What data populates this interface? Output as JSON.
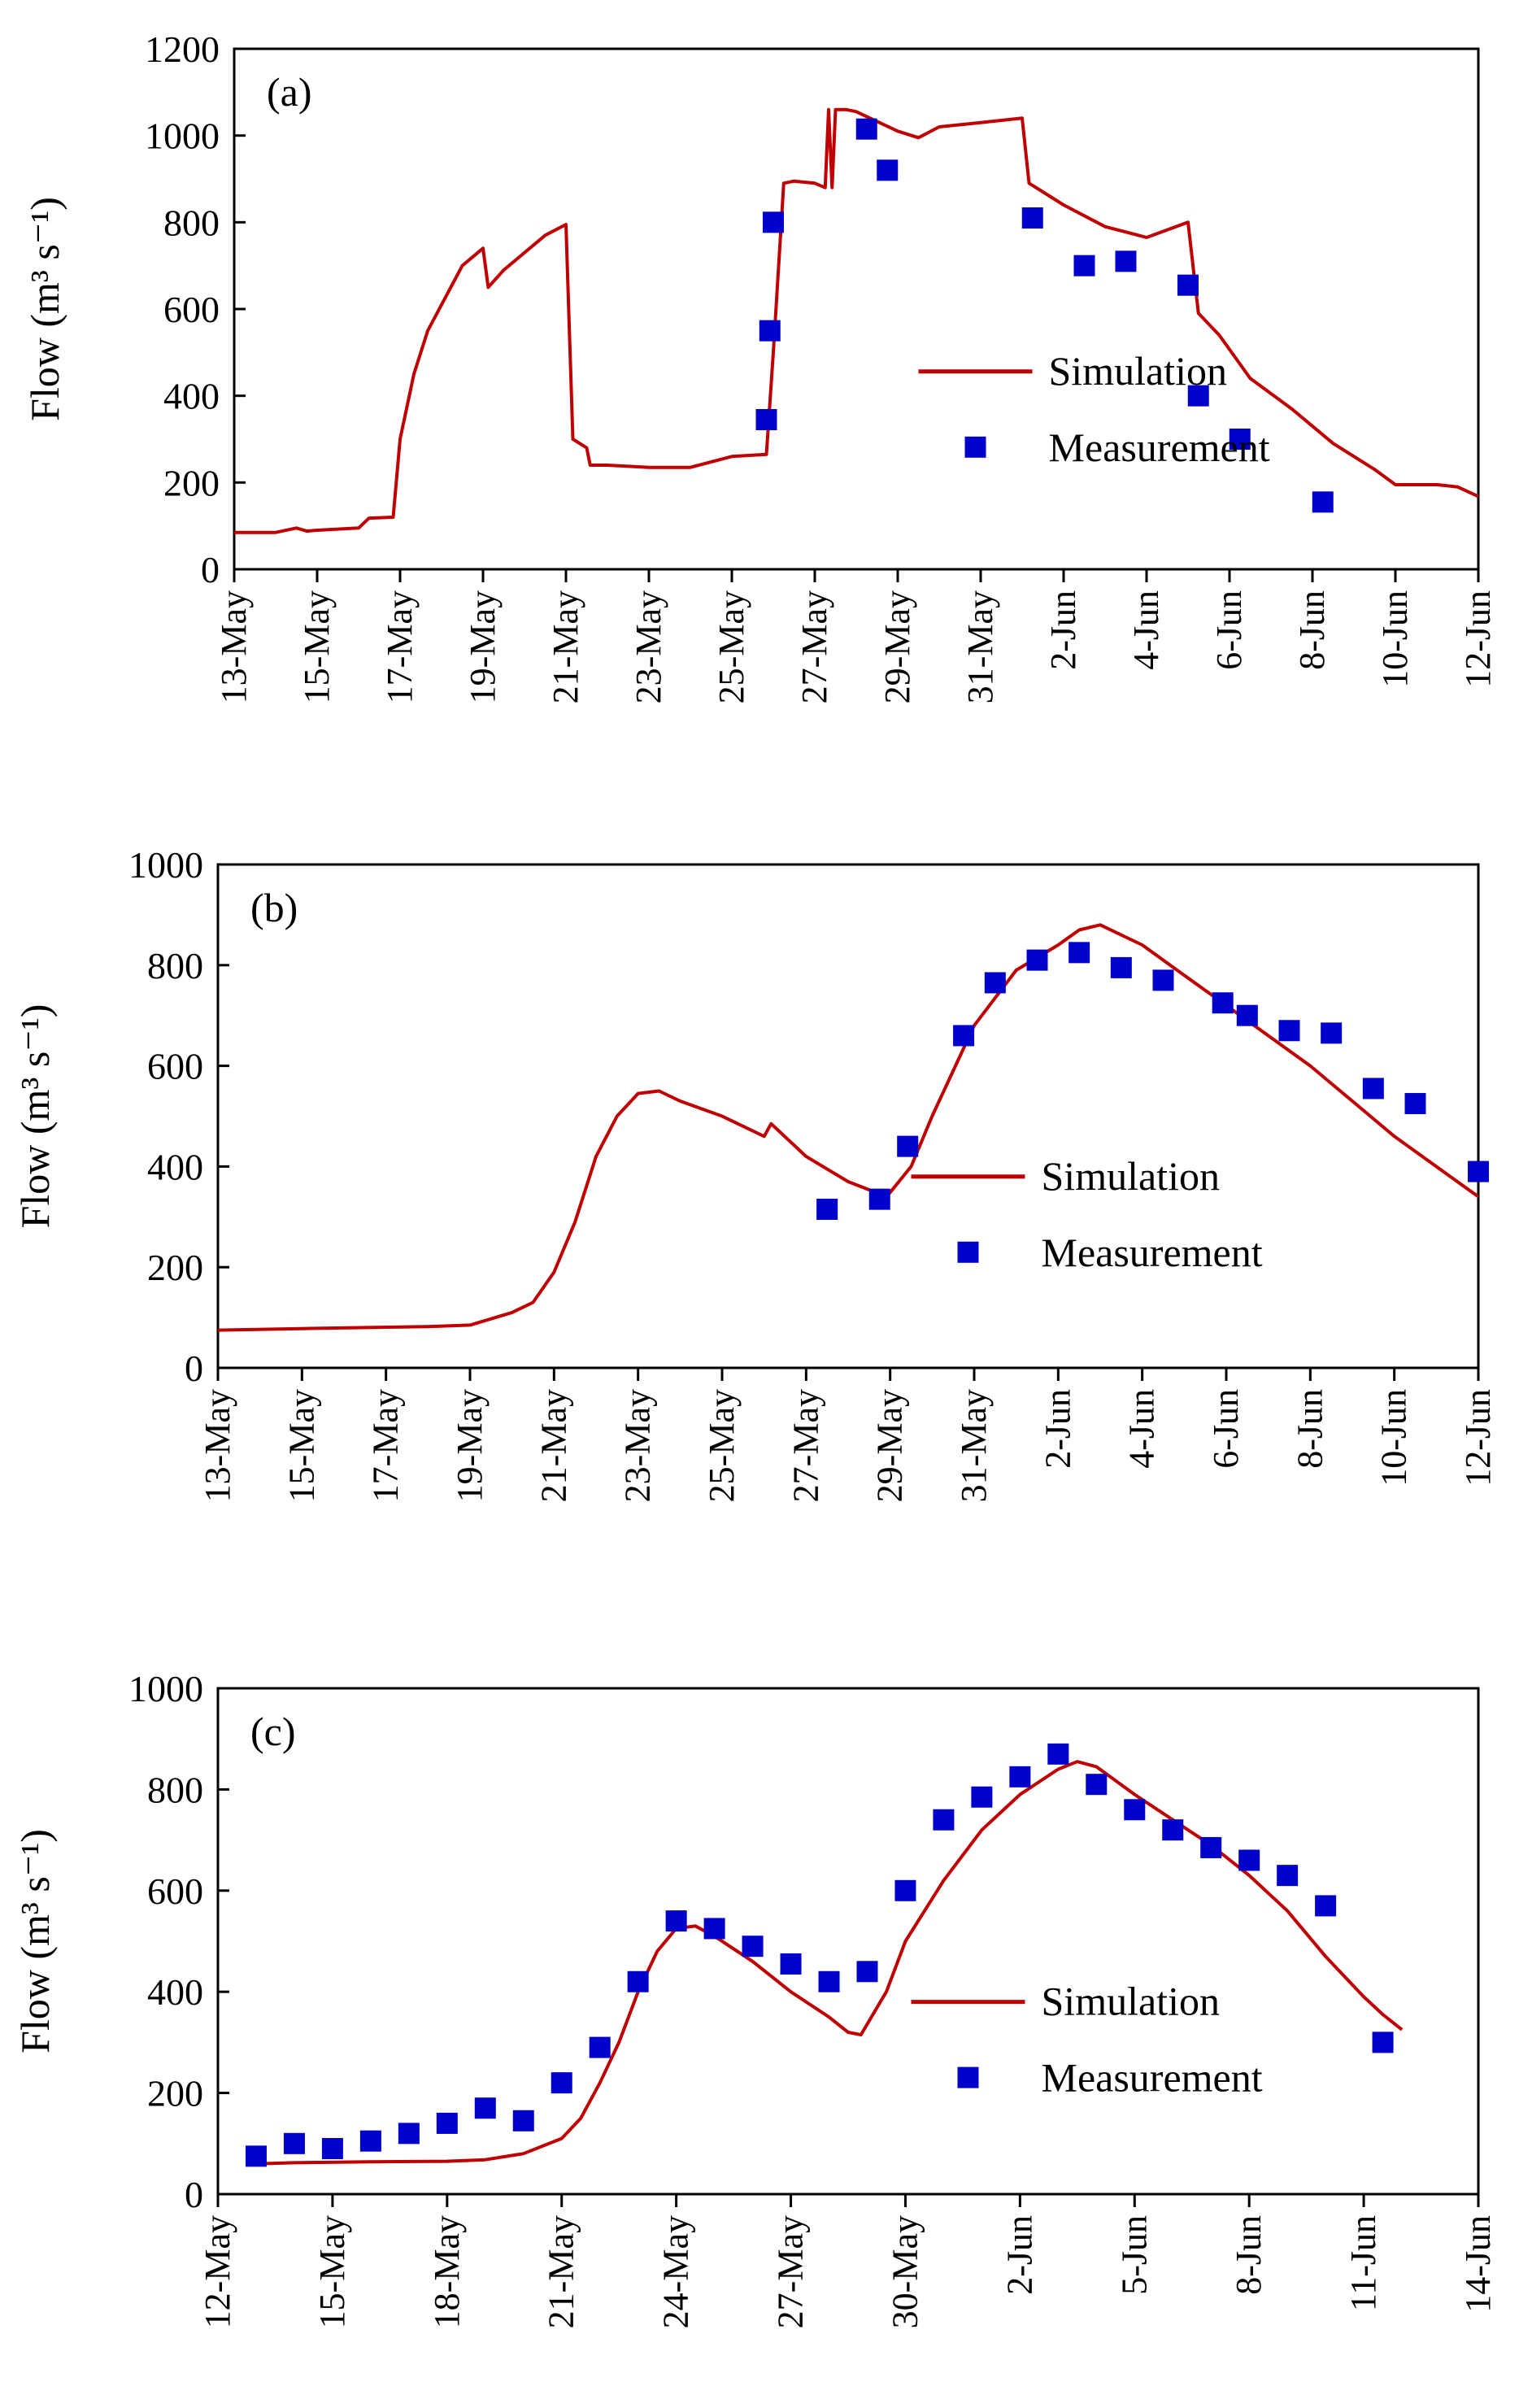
{
  "colors": {
    "simulation": "#c00000",
    "measurement": "#0000cc",
    "axes": "#000000"
  },
  "chart_data": [
    {
      "type": "line",
      "panel_label": "(a)",
      "ylabel": "Flow (m³ s⁻¹)",
      "xlabel": "",
      "x_format": "day-month",
      "ylim": [
        0,
        1200
      ],
      "yticks": [
        0,
        200,
        400,
        600,
        800,
        1000,
        1200
      ],
      "xlim": [
        "2000-05-13",
        "2000-06-12"
      ],
      "xtick_labels": [
        "13-May",
        "15-May",
        "17-May",
        "19-May",
        "21-May",
        "23-May",
        "25-May",
        "27-May",
        "29-May",
        "31-May",
        "2-Jun",
        "4-Jun",
        "6-Jun",
        "8-Jun",
        "10-Jun",
        "12-Jun"
      ],
      "legend": {
        "position": "right-center",
        "entries": [
          "Simulation",
          "Measurement"
        ]
      },
      "series": [
        {
          "name": "Simulation",
          "kind": "line",
          "points": [
            [
              "2000-05-13T00",
              85
            ],
            [
              "2000-05-14T00",
              85
            ],
            [
              "2000-05-14T12",
              95
            ],
            [
              "2000-05-14T18",
              88
            ],
            [
              "2000-05-15T00",
              90
            ],
            [
              "2000-05-16T00",
              95
            ],
            [
              "2000-05-16T06",
              118
            ],
            [
              "2000-05-16T20",
              120
            ],
            [
              "2000-05-17T00",
              300
            ],
            [
              "2000-05-17T08",
              450
            ],
            [
              "2000-05-17T16",
              550
            ],
            [
              "2000-05-18T00",
              610
            ],
            [
              "2000-05-18T12",
              700
            ],
            [
              "2000-05-19T00",
              740
            ],
            [
              "2000-05-19T03",
              650
            ],
            [
              "2000-05-19T12",
              690
            ],
            [
              "2000-05-20T00",
              730
            ],
            [
              "2000-05-20T12",
              770
            ],
            [
              "2000-05-21T00",
              795
            ],
            [
              "2000-05-21T04",
              300
            ],
            [
              "2000-05-21T12",
              280
            ],
            [
              "2000-05-21T14",
              240
            ],
            [
              "2000-05-22T00",
              240
            ],
            [
              "2000-05-23T00",
              235
            ],
            [
              "2000-05-24T00",
              235
            ],
            [
              "2000-05-25T00",
              260
            ],
            [
              "2000-05-25T20",
              265
            ],
            [
              "2000-05-26T00",
              500
            ],
            [
              "2000-05-26T06",
              890
            ],
            [
              "2000-05-26T12",
              895
            ],
            [
              "2000-05-27T00",
              890
            ],
            [
              "2000-05-27T06",
              880
            ],
            [
              "2000-05-27T08",
              1060
            ],
            [
              "2000-05-27T10",
              880
            ],
            [
              "2000-05-27T12",
              1060
            ],
            [
              "2000-05-27T18",
              1060
            ],
            [
              "2000-05-28T00",
              1055
            ],
            [
              "2000-05-29T00",
              1010
            ],
            [
              "2000-05-29T12",
              995
            ],
            [
              "2000-05-30T00",
              1020
            ],
            [
              "2000-05-31T00",
              1030
            ],
            [
              "2000-06-01T00",
              1040
            ],
            [
              "2000-06-01T04",
              890
            ],
            [
              "2000-06-02T00",
              840
            ],
            [
              "2000-06-03T00",
              790
            ],
            [
              "2000-06-04T00",
              765
            ],
            [
              "2000-06-05T00",
              800
            ],
            [
              "2000-06-05T06",
              590
            ],
            [
              "2000-06-05T18",
              540
            ],
            [
              "2000-06-06T12",
              440
            ],
            [
              "2000-06-07T12",
              370
            ],
            [
              "2000-06-08T12",
              290
            ],
            [
              "2000-06-09T12",
              230
            ],
            [
              "2000-06-10T00",
              195
            ],
            [
              "2000-06-11T00",
              195
            ],
            [
              "2000-06-11T12",
              190
            ],
            [
              "2000-06-12T00",
              168
            ]
          ]
        },
        {
          "name": "Measurement",
          "kind": "scatter",
          "points": [
            [
              "2000-05-25T20",
              345
            ],
            [
              "2000-05-25T22",
              550
            ],
            [
              "2000-05-26T00",
              800
            ],
            [
              "2000-05-28T06",
              1015
            ],
            [
              "2000-05-28T18",
              920
            ],
            [
              "2000-06-01T06",
              810
            ],
            [
              "2000-06-02T12",
              700
            ],
            [
              "2000-06-03T12",
              710
            ],
            [
              "2000-06-05T00",
              655
            ],
            [
              "2000-06-05T06",
              400
            ],
            [
              "2000-06-06T06",
              300
            ],
            [
              "2000-06-08T06",
              155
            ]
          ]
        }
      ]
    },
    {
      "type": "line",
      "panel_label": "(b)",
      "ylabel": "Flow (m³ s⁻¹)",
      "xlabel": "",
      "x_format": "day-month",
      "ylim": [
        0,
        1000
      ],
      "yticks": [
        0,
        200,
        400,
        600,
        800,
        1000
      ],
      "xlim": [
        "2000-05-13",
        "2000-06-12"
      ],
      "xtick_labels": [
        "13-May",
        "15-May",
        "17-May",
        "19-May",
        "21-May",
        "23-May",
        "25-May",
        "27-May",
        "29-May",
        "31-May",
        "2-Jun",
        "4-Jun",
        "6-Jun",
        "8-Jun",
        "10-Jun",
        "12-Jun"
      ],
      "legend": {
        "position": "right-center",
        "entries": [
          "Simulation",
          "Measurement"
        ]
      },
      "series": [
        {
          "name": "Simulation",
          "kind": "line",
          "points": [
            [
              "2000-05-13T00",
              75
            ],
            [
              "2000-05-15T00",
              78
            ],
            [
              "2000-05-18T00",
              82
            ],
            [
              "2000-05-19T00",
              85
            ],
            [
              "2000-05-20T00",
              110
            ],
            [
              "2000-05-20T12",
              130
            ],
            [
              "2000-05-21T00",
              190
            ],
            [
              "2000-05-21T12",
              290
            ],
            [
              "2000-05-22T00",
              420
            ],
            [
              "2000-05-22T12",
              500
            ],
            [
              "2000-05-23T00",
              545
            ],
            [
              "2000-05-23T12",
              550
            ],
            [
              "2000-05-24T00",
              530
            ],
            [
              "2000-05-25T00",
              500
            ],
            [
              "2000-05-26T00",
              460
            ],
            [
              "2000-05-26T04",
              485
            ],
            [
              "2000-05-27T00",
              420
            ],
            [
              "2000-05-28T00",
              370
            ],
            [
              "2000-05-28T22",
              340
            ],
            [
              "2000-05-29T12",
              400
            ],
            [
              "2000-05-30T00",
              500
            ],
            [
              "2000-05-31T00",
              680
            ],
            [
              "2000-06-01T00",
              790
            ],
            [
              "2000-06-02T00",
              840
            ],
            [
              "2000-06-02T12",
              870
            ],
            [
              "2000-06-03T00",
              880
            ],
            [
              "2000-06-04T00",
              840
            ],
            [
              "2000-06-05T00",
              780
            ],
            [
              "2000-06-06T00",
              720
            ],
            [
              "2000-06-07T00",
              660
            ],
            [
              "2000-06-08T00",
              600
            ],
            [
              "2000-06-09T00",
              530
            ],
            [
              "2000-06-10T00",
              460
            ],
            [
              "2000-06-11T00",
              400
            ],
            [
              "2000-06-12T00",
              340
            ]
          ]
        },
        {
          "name": "Measurement",
          "kind": "scatter",
          "points": [
            [
              "2000-05-27T12",
              315
            ],
            [
              "2000-05-28T18",
              335
            ],
            [
              "2000-05-29T10",
              440
            ],
            [
              "2000-05-30T18",
              660
            ],
            [
              "2000-05-31T12",
              765
            ],
            [
              "2000-06-01T12",
              810
            ],
            [
              "2000-06-02T12",
              825
            ],
            [
              "2000-06-03T12",
              795
            ],
            [
              "2000-06-04T12",
              770
            ],
            [
              "2000-06-05T22",
              725
            ],
            [
              "2000-06-06T12",
              700
            ],
            [
              "2000-06-07T12",
              670
            ],
            [
              "2000-06-08T12",
              665
            ],
            [
              "2000-06-09T12",
              555
            ],
            [
              "2000-06-10T12",
              525
            ],
            [
              "2000-06-12T00",
              390
            ]
          ]
        }
      ]
    },
    {
      "type": "line",
      "panel_label": "(c)",
      "ylabel": "Flow (m³ s⁻¹)",
      "xlabel": "",
      "x_format": "day-month",
      "ylim": [
        0,
        1000
      ],
      "yticks": [
        0,
        200,
        400,
        600,
        800,
        1000
      ],
      "xlim": [
        "2000-05-12",
        "2000-06-14"
      ],
      "xtick_labels": [
        "12-May",
        "15-May",
        "18-May",
        "21-May",
        "24-May",
        "27-May",
        "30-May",
        "2-Jun",
        "5-Jun",
        "8-Jun",
        "11-Jun",
        "14-Jun"
      ],
      "legend": {
        "position": "right-center",
        "entries": [
          "Simulation",
          "Measurement"
        ]
      },
      "series": [
        {
          "name": "Simulation",
          "kind": "line",
          "points": [
            [
              "2000-05-13T00",
              60
            ],
            [
              "2000-05-14T00",
              62
            ],
            [
              "2000-05-16T00",
              64
            ],
            [
              "2000-05-18T00",
              65
            ],
            [
              "2000-05-19T00",
              68
            ],
            [
              "2000-05-20T00",
              80
            ],
            [
              "2000-05-21T00",
              110
            ],
            [
              "2000-05-21T12",
              150
            ],
            [
              "2000-05-22T00",
              220
            ],
            [
              "2000-05-22T12",
              300
            ],
            [
              "2000-05-23T00",
              400
            ],
            [
              "2000-05-23T12",
              480
            ],
            [
              "2000-05-24T00",
              525
            ],
            [
              "2000-05-24T12",
              530
            ],
            [
              "2000-05-25T00",
              510
            ],
            [
              "2000-05-26T00",
              460
            ],
            [
              "2000-05-27T00",
              400
            ],
            [
              "2000-05-28T00",
              350
            ],
            [
              "2000-05-28T12",
              320
            ],
            [
              "2000-05-28T20",
              315
            ],
            [
              "2000-05-29T12",
              400
            ],
            [
              "2000-05-30T00",
              500
            ],
            [
              "2000-05-31T00",
              620
            ],
            [
              "2000-06-01T00",
              720
            ],
            [
              "2000-06-02T00",
              790
            ],
            [
              "2000-06-03T00",
              840
            ],
            [
              "2000-06-03T12",
              855
            ],
            [
              "2000-06-04T00",
              845
            ],
            [
              "2000-06-05T00",
              790
            ],
            [
              "2000-06-06T00",
              740
            ],
            [
              "2000-06-07T00",
              690
            ],
            [
              "2000-06-08T00",
              630
            ],
            [
              "2000-06-09T00",
              560
            ],
            [
              "2000-06-10T00",
              470
            ],
            [
              "2000-06-11T00",
              390
            ],
            [
              "2000-06-11T12",
              355
            ],
            [
              "2000-06-12T00",
              325
            ]
          ]
        },
        {
          "name": "Measurement",
          "kind": "scatter",
          "points": [
            [
              "2000-05-13T00",
              75
            ],
            [
              "2000-05-14T00",
              100
            ],
            [
              "2000-05-15T00",
              90
            ],
            [
              "2000-05-16T00",
              105
            ],
            [
              "2000-05-17T00",
              120
            ],
            [
              "2000-05-18T00",
              140
            ],
            [
              "2000-05-19T00",
              170
            ],
            [
              "2000-05-20T00",
              145
            ],
            [
              "2000-05-21T00",
              220
            ],
            [
              "2000-05-22T00",
              290
            ],
            [
              "2000-05-23T00",
              420
            ],
            [
              "2000-05-24T00",
              540
            ],
            [
              "2000-05-25T00",
              525
            ],
            [
              "2000-05-26T00",
              490
            ],
            [
              "2000-05-27T00",
              455
            ],
            [
              "2000-05-28T00",
              420
            ],
            [
              "2000-05-29T00",
              440
            ],
            [
              "2000-05-30T00",
              600
            ],
            [
              "2000-05-31T00",
              740
            ],
            [
              "2000-06-01T00",
              785
            ],
            [
              "2000-06-02T00",
              825
            ],
            [
              "2000-06-03T00",
              870
            ],
            [
              "2000-06-04T00",
              810
            ],
            [
              "2000-06-05T00",
              760
            ],
            [
              "2000-06-06T00",
              720
            ],
            [
              "2000-06-07T00",
              685
            ],
            [
              "2000-06-08T00",
              660
            ],
            [
              "2000-06-09T00",
              630
            ],
            [
              "2000-06-10T00",
              570
            ],
            [
              "2000-06-11T12",
              300
            ]
          ]
        }
      ]
    }
  ]
}
